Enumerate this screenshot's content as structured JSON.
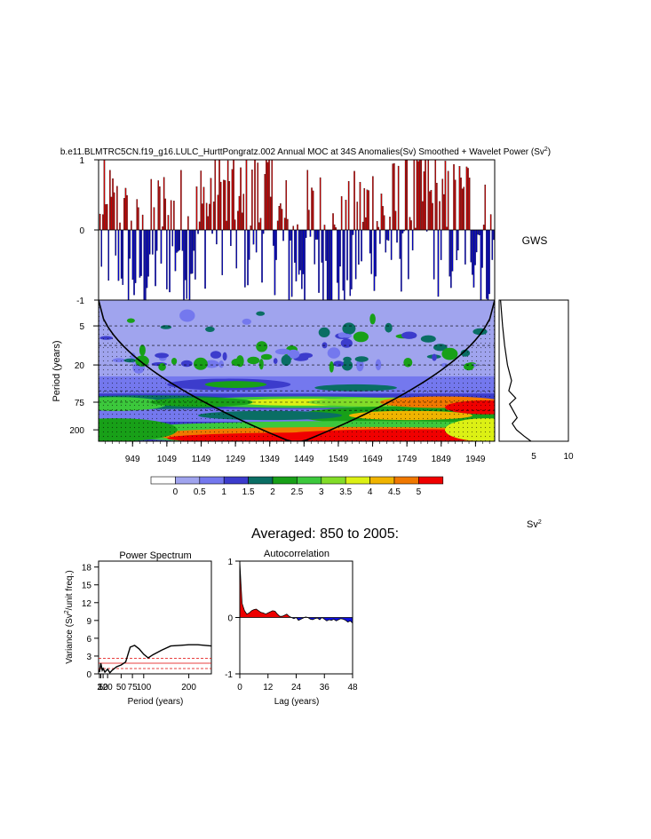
{
  "figure": {
    "title_prefix": "b.e11.BLMTRC5CN.f19_g16.LULC_HurttPongratz.002 Annual MOC at 34S Anomalies(Sv) Smoothed + Wavelet Power (Sv",
    "title_sup": "2",
    "title_suffix": ")",
    "gws_label": "GWS",
    "sv2_label": "Sv",
    "sv2_sup": "2",
    "averaged_title": "Averaged: 850 to 2005:"
  },
  "colors": {
    "positive": "#cc0000",
    "negative": "#0000cc",
    "wavelet_scale": [
      "#ffffff",
      "#a0a4ee",
      "#7478ee",
      "#3c3ccc",
      "#0a6e64",
      "#18a018",
      "#3cc83c",
      "#82dc28",
      "#dcf014",
      "#f0b400",
      "#f07800",
      "#f00000"
    ]
  },
  "chart_data": [
    {
      "type": "line",
      "title": "",
      "ylim": [
        -1,
        1
      ],
      "xlim": [
        850,
        2005
      ],
      "yticks": [
        "1",
        "0",
        "-1"
      ],
      "series": [
        {
          "values_note_shown": "",
          "values": []
        }
      ]
    },
    {
      "type": "heatmap",
      "ylabel": "Period (years)",
      "xticks": [
        "949",
        "1049",
        "1149",
        "1249",
        "1349",
        "1449",
        "1549",
        "1649",
        "1749",
        "1849",
        "1949"
      ],
      "yticks": [
        "5",
        "20",
        "75",
        "200"
      ],
      "ylim": [
        2,
        300
      ],
      "colorbar_labels": [
        "0",
        "0.5",
        "1",
        "1.5",
        "2",
        "2.5",
        "3",
        "3.5",
        "4",
        "4.5",
        "5"
      ],
      "power_bands": [
        {
          "period": 5,
          "power": 0.8
        },
        {
          "period": 20,
          "power": 0.6
        },
        {
          "period": 40,
          "power": 1.8
        },
        {
          "period": 75,
          "power": 3.2
        },
        {
          "period": 120,
          "power": 3.8
        },
        {
          "period": 200,
          "power": 4.5
        }
      ]
    },
    {
      "type": "line",
      "title": "GWS",
      "xticks": [
        "5",
        "10"
      ],
      "xlim": [
        0,
        10
      ],
      "x": [
        0.2,
        0.5,
        0.8,
        1.2,
        1.8,
        1.4,
        2.4,
        1.5,
        2.0,
        2.6,
        1.9,
        2.5,
        3.6,
        4.6
      ],
      "y": [
        2,
        5,
        10,
        20,
        35,
        50,
        65,
        80,
        100,
        130,
        160,
        200,
        250,
        300
      ]
    },
    {
      "type": "line",
      "title": "Power Spectrum",
      "xlabel": "Period (years)",
      "ylabel_prefix": "Variance (Sv",
      "ylabel_sup": "2",
      "ylabel_suffix": "/unit freq.)",
      "xticks": [
        "2",
        "5",
        "10",
        "20",
        "50",
        "75",
        "100",
        "200"
      ],
      "yticks": [
        "0",
        "3",
        "6",
        "9",
        "12",
        "15",
        "18"
      ],
      "xlim": [
        0,
        250
      ],
      "ylim": [
        0,
        19
      ],
      "series": [
        {
          "x": [
            2,
            5,
            8,
            10,
            14,
            20,
            25,
            30,
            40,
            50,
            60,
            70,
            80,
            90,
            100,
            110,
            120,
            140,
            160,
            180,
            200,
            220,
            250
          ],
          "y": [
            0.3,
            1.8,
            0.6,
            0.9,
            0.3,
            0.8,
            0.2,
            0.6,
            1.2,
            1.5,
            2.0,
            4.5,
            4.8,
            4.2,
            3.3,
            2.7,
            3.2,
            4.0,
            4.7,
            4.8,
            4.9,
            4.9,
            4.7
          ]
        }
      ],
      "reference_lines": [
        2.6,
        1.8,
        0.9
      ]
    },
    {
      "type": "area",
      "title": "Autocorrelation",
      "xlabel": "Lag (years)",
      "xticks": [
        "0",
        "12",
        "24",
        "36",
        "48"
      ],
      "yticks": [
        "1",
        "0",
        "-1"
      ],
      "xlim": [
        0,
        48
      ],
      "ylim": [
        -1,
        1
      ],
      "x": [
        0,
        0.5,
        1,
        2,
        3,
        4,
        5,
        6,
        7,
        8,
        9,
        10,
        11,
        12,
        13,
        14,
        15,
        16,
        17,
        18,
        19,
        20,
        21,
        22,
        23,
        24,
        25,
        26,
        27,
        28,
        29,
        30,
        31,
        32,
        33,
        34,
        35,
        36,
        37,
        38,
        39,
        40,
        41,
        42,
        43,
        44,
        45,
        46,
        47,
        48
      ],
      "y": [
        1.0,
        0.6,
        0.25,
        0.12,
        0.06,
        0.08,
        0.12,
        0.14,
        0.15,
        0.12,
        0.09,
        0.08,
        0.06,
        0.08,
        0.1,
        0.12,
        0.11,
        0.06,
        0.02,
        0.02,
        0.04,
        0.06,
        0.02,
        0.0,
        -0.02,
        0.0,
        -0.05,
        -0.03,
        -0.01,
        0.01,
        0.0,
        -0.03,
        -0.04,
        -0.02,
        -0.01,
        -0.04,
        0.0,
        -0.03,
        -0.06,
        -0.04,
        -0.05,
        -0.03,
        -0.06,
        -0.04,
        -0.02,
        -0.03,
        -0.05,
        -0.08,
        -0.06,
        -0.1
      ]
    }
  ]
}
